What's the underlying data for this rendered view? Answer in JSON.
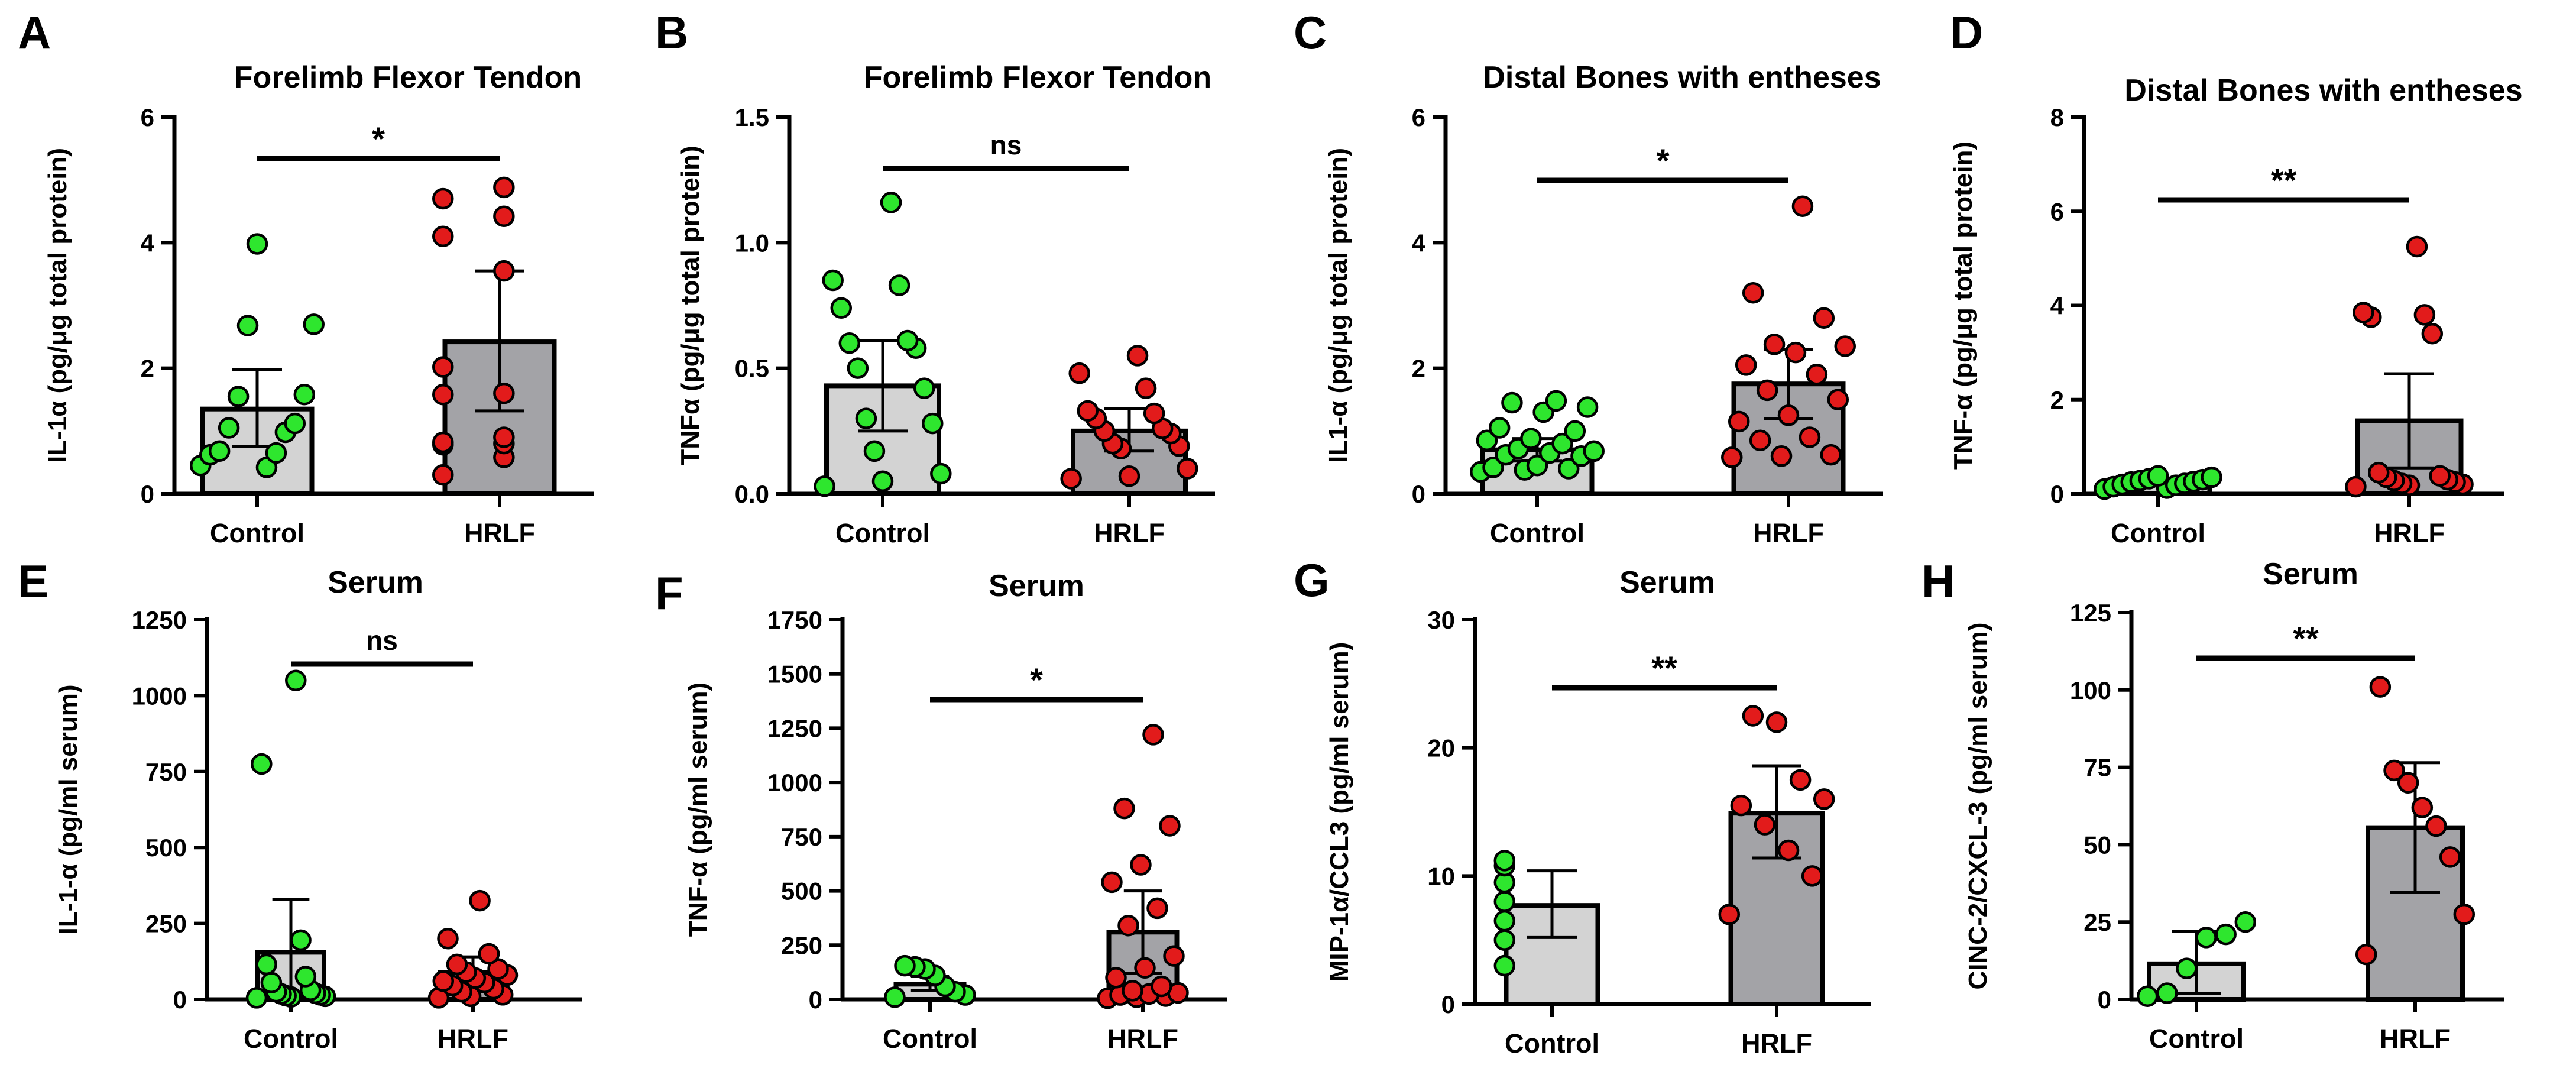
{
  "figure": {
    "colors": {
      "control_bar": "#d3d3d3",
      "hrlf_bar": "#a3a3a7",
      "control_points": "#2ee62e",
      "hrlf_points": "#e21b1b",
      "outline": "#000000"
    }
  },
  "chart_data": [
    {
      "panel": "A",
      "type": "bar",
      "title": "Forelimb Flexor Tendon",
      "ylabel": "IL-1α (pg/μg total protein)",
      "ylim": [
        0,
        6
      ],
      "yticks": [
        0,
        2,
        4,
        6
      ],
      "ytick_labels": [
        "0",
        "2",
        "4",
        "6"
      ],
      "categories": [
        "Control",
        "HRLF"
      ],
      "values": [
        1.35,
        2.42
      ],
      "error_low": [
        0.75,
        1.32
      ],
      "error_high": [
        1.98,
        3.55
      ],
      "points": [
        [
          0.45,
          0.42,
          0.62,
          0.65,
          0.68,
          0.98,
          1.05,
          1.12,
          1.55,
          1.58,
          2.68,
          2.7,
          3.98
        ],
        [
          0.3,
          0.58,
          0.78,
          0.8,
          0.82,
          0.9,
          1.58,
          1.6,
          2.02,
          3.55,
          4.1,
          4.42,
          4.7,
          4.88
        ]
      ],
      "significance": "*"
    },
    {
      "panel": "B",
      "type": "bar",
      "title": "Forelimb Flexor Tendon",
      "ylabel": "TNFα (pg/μg total protein)",
      "ylim": [
        0,
        1.5
      ],
      "yticks": [
        0,
        0.5,
        1.0,
        1.5
      ],
      "ytick_labels": [
        "0.0",
        "0.5",
        "1.0",
        "1.5"
      ],
      "categories": [
        "Control",
        "HRLF"
      ],
      "values": [
        0.43,
        0.25
      ],
      "error_low": [
        0.25,
        0.17
      ],
      "error_high": [
        0.61,
        0.34
      ],
      "points": [
        [
          0.03,
          0.05,
          0.08,
          0.17,
          0.28,
          0.3,
          0.42,
          0.5,
          0.58,
          0.6,
          0.61,
          0.74,
          0.83,
          0.85,
          1.16
        ],
        [
          0.06,
          0.07,
          0.1,
          0.18,
          0.19,
          0.2,
          0.24,
          0.25,
          0.26,
          0.3,
          0.32,
          0.33,
          0.42,
          0.48,
          0.55
        ]
      ],
      "significance": "ns"
    },
    {
      "panel": "C",
      "type": "bar",
      "title": "Distal Bones with entheses",
      "ylabel": "IL1-α (pg/μg total protein)",
      "ylim": [
        0,
        6
      ],
      "yticks": [
        0,
        2,
        4,
        6
      ],
      "ytick_labels": [
        "0",
        "2",
        "4",
        "6"
      ],
      "categories": [
        "Control",
        "HRLF"
      ],
      "values": [
        0.7,
        1.75
      ],
      "error_low": [
        0.52,
        1.2
      ],
      "error_high": [
        0.88,
        2.3
      ],
      "points": [
        [
          0.35,
          0.38,
          0.4,
          0.42,
          0.45,
          0.6,
          0.62,
          0.65,
          0.68,
          0.72,
          0.8,
          0.85,
          0.88,
          1.0,
          1.05,
          1.3,
          1.38,
          1.45,
          1.48
        ],
        [
          0.58,
          0.6,
          0.62,
          0.85,
          0.9,
          1.15,
          1.25,
          1.5,
          1.65,
          1.9,
          2.05,
          2.25,
          2.35,
          2.38,
          2.8,
          3.2,
          4.58
        ]
      ],
      "significance": "*"
    },
    {
      "panel": "D",
      "type": "bar",
      "title": "Distal Bones with entheses",
      "ylabel": "TNF-α (pg/μg total protein)",
      "ylim": [
        0,
        8
      ],
      "yticks": [
        0,
        2,
        4,
        6,
        8
      ],
      "ytick_labels": [
        "0",
        "2",
        "4",
        "6",
        "8"
      ],
      "categories": [
        "Control",
        "HRLF"
      ],
      "values": [
        0.25,
        1.55
      ],
      "error_low": [
        0.2,
        0.55
      ],
      "error_high": [
        0.3,
        2.55
      ],
      "points": [
        [
          0.1,
          0.12,
          0.15,
          0.18,
          0.2,
          0.22,
          0.25,
          0.26,
          0.28,
          0.3,
          0.32,
          0.35,
          0.38
        ],
        [
          0.15,
          0.18,
          0.2,
          0.22,
          0.25,
          0.28,
          0.3,
          0.35,
          0.38,
          0.45,
          3.4,
          3.75,
          3.8,
          3.85,
          5.25
        ]
      ],
      "significance": "**"
    },
    {
      "panel": "E",
      "type": "bar",
      "title": "Serum",
      "ylabel": "IL-1-α (pg/ml serum)",
      "ylim": [
        0,
        1250
      ],
      "yticks": [
        0,
        250,
        500,
        750,
        1000,
        1250
      ],
      "ytick_labels": [
        "0",
        "250",
        "500",
        "750",
        "1000",
        "1250"
      ],
      "categories": [
        "Control",
        "HRLF"
      ],
      "values": [
        155,
        88
      ],
      "error_low": [
        0,
        35
      ],
      "error_high": [
        330,
        140
      ],
      "points": [
        [
          5,
          8,
          10,
          12,
          15,
          18,
          20,
          25,
          30,
          55,
          75,
          115,
          195,
          775,
          1050
        ],
        [
          5,
          10,
          15,
          25,
          35,
          45,
          55,
          60,
          70,
          80,
          90,
          100,
          115,
          150,
          200,
          325
        ]
      ],
      "significance": "ns"
    },
    {
      "panel": "F",
      "type": "bar",
      "title": "Serum",
      "ylabel": "TNF-α (pg/ml serum)",
      "ylim": [
        0,
        1750
      ],
      "yticks": [
        0,
        250,
        500,
        750,
        1000,
        1250,
        1500,
        1750
      ],
      "ytick_labels": [
        "0",
        "250",
        "500",
        "750",
        "1000",
        "1250",
        "1500",
        "1750"
      ],
      "categories": [
        "Control",
        "HRLF"
      ],
      "values": [
        70,
        310
      ],
      "error_low": [
        40,
        120
      ],
      "error_high": [
        105,
        500
      ],
      "points": [
        [
          10,
          20,
          35,
          60,
          110,
          140,
          150,
          155
        ],
        [
          5,
          10,
          15,
          20,
          25,
          30,
          40,
          60,
          100,
          145,
          200,
          340,
          420,
          540,
          620,
          800,
          880,
          1220
        ]
      ],
      "significance": "*"
    },
    {
      "panel": "G",
      "type": "bar",
      "title": "Serum",
      "ylabel": "MIP-1α/CCL3 (pg/ml serum)",
      "ylim": [
        0,
        30
      ],
      "yticks": [
        0,
        10,
        20,
        30
      ],
      "ytick_labels": [
        "0",
        "10",
        "20",
        "30"
      ],
      "categories": [
        "Control",
        "HRLF"
      ],
      "values": [
        7.7,
        14.9
      ],
      "error_low": [
        5.2,
        11.4
      ],
      "error_high": [
        10.4,
        18.6
      ],
      "points": [
        [
          3.0,
          5.0,
          6.5,
          8.0,
          9.5,
          10.8,
          11.2
        ],
        [
          7.0,
          10.0,
          12.0,
          14.0,
          15.5,
          16.0,
          17.5,
          22.0,
          22.5
        ]
      ],
      "significance": "**"
    },
    {
      "panel": "H",
      "type": "bar",
      "title": "Serum",
      "ylabel": "CINC-2/CXCL-3 (pg/ml serum)",
      "ylim": [
        0,
        125
      ],
      "yticks": [
        0,
        25,
        50,
        75,
        100,
        125
      ],
      "ytick_labels": [
        "0",
        "25",
        "50",
        "75",
        "100",
        "125"
      ],
      "categories": [
        "Control",
        "HRLF"
      ],
      "values": [
        11.5,
        55.5
      ],
      "error_low": [
        2,
        34.5
      ],
      "error_high": [
        22,
        76.5
      ],
      "points": [
        [
          1,
          2,
          10,
          20,
          21,
          25
        ],
        [
          14.5,
          27.5,
          46,
          56,
          62,
          70,
          74,
          101
        ]
      ],
      "significance": "**"
    }
  ]
}
